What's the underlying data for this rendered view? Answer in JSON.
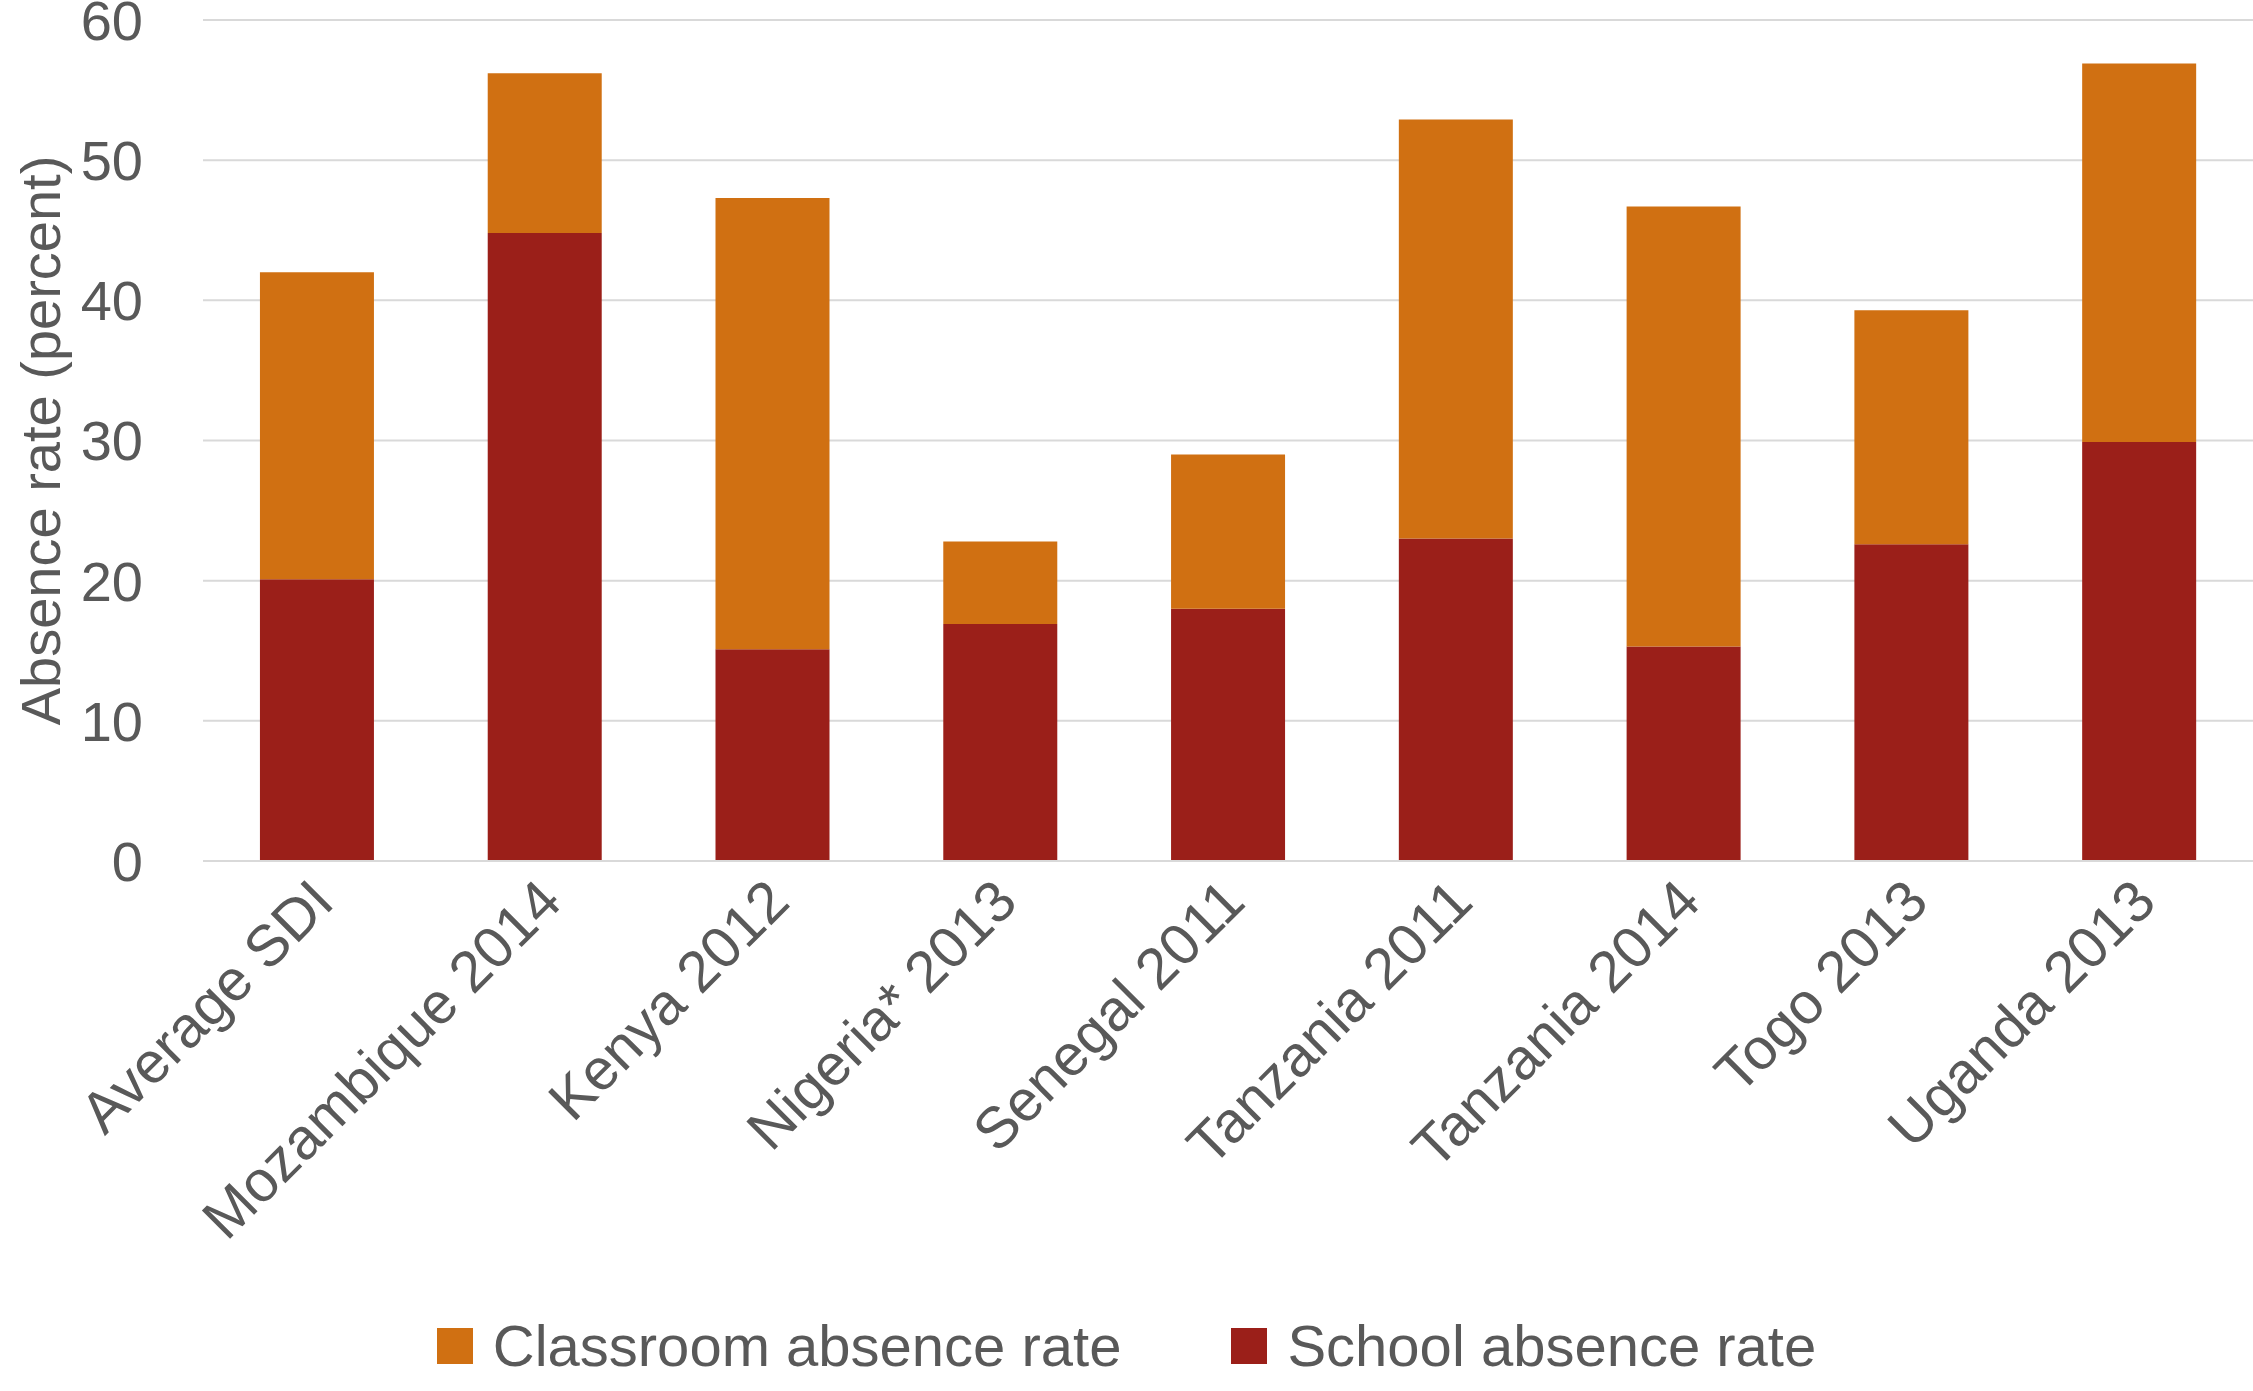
{
  "chart_data": {
    "type": "bar",
    "stacked": true,
    "ylabel": "Absence rate (percent)",
    "categories": [
      "Average SDI",
      "Mozambique 2014",
      "Kenya 2012",
      "Nigeria* 2013",
      "Senegal 2011",
      "Tanzania 2011",
      "Tanzania 2014",
      "Togo 2013",
      "Uganda 2013"
    ],
    "series": [
      {
        "name": "School absence rate",
        "color": "#9b1f19",
        "values": [
          20.1,
          44.8,
          15.1,
          16.9,
          18.0,
          23.0,
          15.3,
          22.6,
          29.9
        ]
      },
      {
        "name": "Classroom absence rate",
        "color": "#d07012",
        "values": [
          21.9,
          11.4,
          32.2,
          5.9,
          11.0,
          29.9,
          31.4,
          16.7,
          27.0
        ]
      }
    ],
    "ylim": [
      0,
      60
    ],
    "yticks": [
      0,
      10,
      20,
      30,
      40,
      50,
      60
    ],
    "grid": "y",
    "legend": "bottom"
  }
}
